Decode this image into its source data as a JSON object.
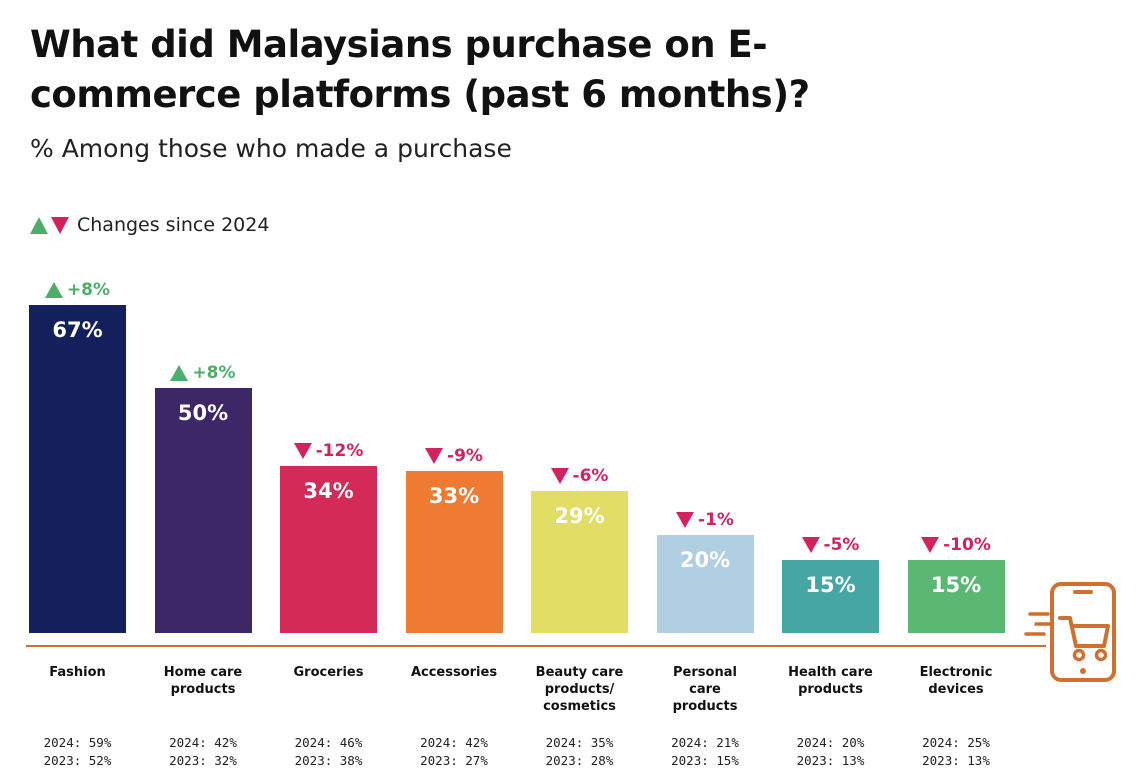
{
  "title": "What did Malaysians purchase on E-commerce platforms (past 6 months)?",
  "subtitle": "% Among those who made a purchase",
  "legend": {
    "label": "Changes since 2024"
  },
  "colors": {
    "up": "#4cae6a",
    "down": "#d4215f",
    "baseline": "#d0702f"
  },
  "icons": {
    "cart": "phone-shopping-cart-icon"
  },
  "chart_data": {
    "type": "bar",
    "categories": [
      "Fashion",
      "Home care products",
      "Groceries",
      "Accessories",
      "Beauty care products/ cosmetics",
      "Personal care products",
      "Health care products",
      "Electronic devices"
    ],
    "values": [
      67,
      50,
      34,
      33,
      29,
      20,
      15,
      15
    ],
    "value_labels": [
      "67%",
      "50%",
      "34%",
      "33%",
      "29%",
      "20%",
      "15%",
      "15%"
    ],
    "changes": [
      "+8%",
      "+8%",
      "-12%",
      "-9%",
      "-6%",
      "-1%",
      "-5%",
      "-10%"
    ],
    "change_direction": [
      "up",
      "up",
      "down",
      "down",
      "down",
      "down",
      "down",
      "down"
    ],
    "bar_colors": [
      "#14205c",
      "#3e2766",
      "#d42a57",
      "#ee7b31",
      "#e2dd64",
      "#b0cfe3",
      "#46a6a4",
      "#5bb873"
    ],
    "history_2024": [
      "2024: 59%",
      "2024: 42%",
      "2024: 46%",
      "2024: 42%",
      "2024: 35%",
      "2024: 21%",
      "2024: 20%",
      "2024: 25%"
    ],
    "history_2023": [
      "2023: 52%",
      "2023: 32%",
      "2023: 38%",
      "2023: 27%",
      "2023: 28%",
      "2023: 15%",
      "2023: 13%",
      "2023: 13%"
    ],
    "ylim": [
      0,
      100
    ],
    "xlabel": "",
    "ylabel": "",
    "grid": false,
    "legend_position": "top-left"
  }
}
